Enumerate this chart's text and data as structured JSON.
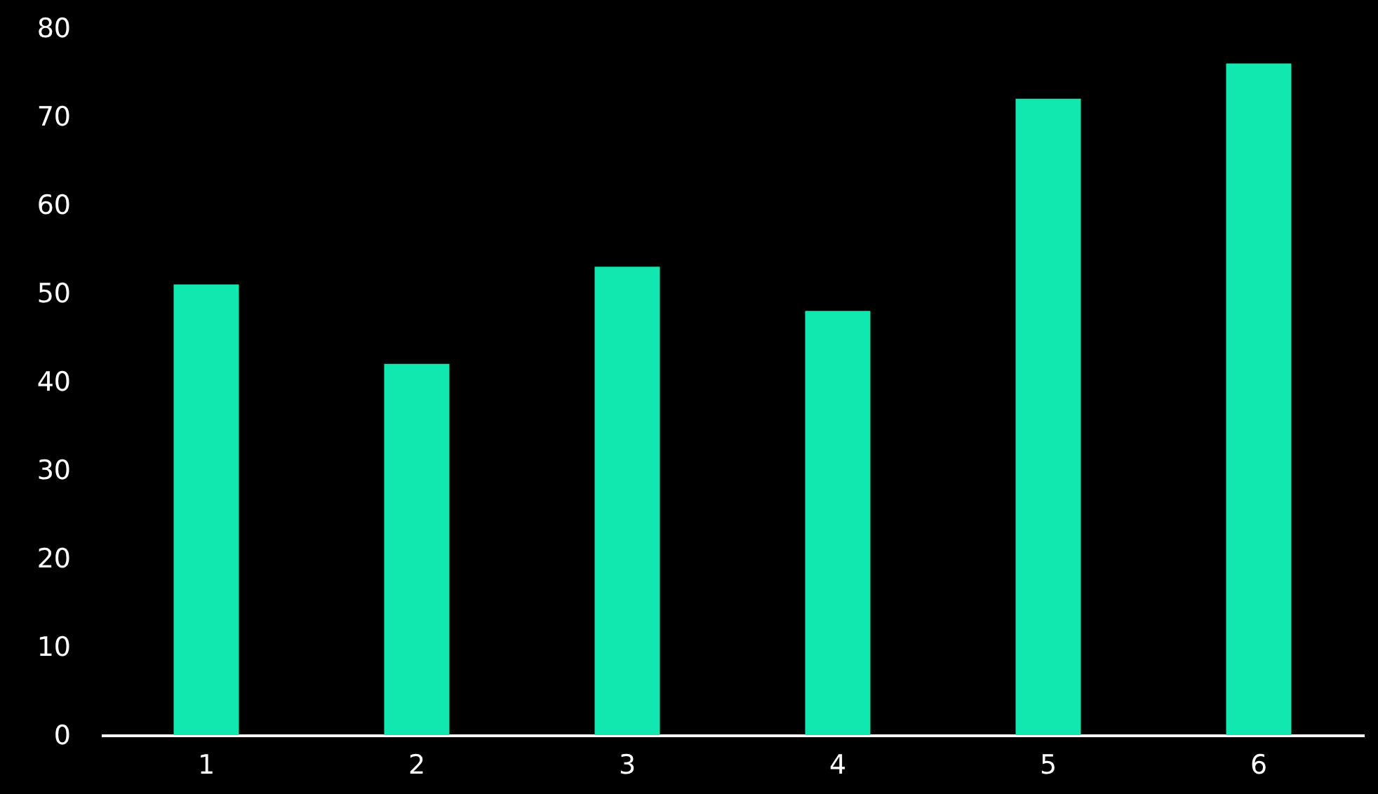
{
  "chart_data": {
    "type": "bar",
    "categories": [
      "1",
      "2",
      "3",
      "4",
      "5",
      "6"
    ],
    "values": [
      51,
      42,
      53,
      48,
      72,
      76
    ],
    "color": "#10e8b0",
    "ylim": [
      0,
      80
    ],
    "yticks": [
      0,
      10,
      20,
      30,
      40,
      50,
      60,
      70,
      80
    ],
    "grid": false
  }
}
